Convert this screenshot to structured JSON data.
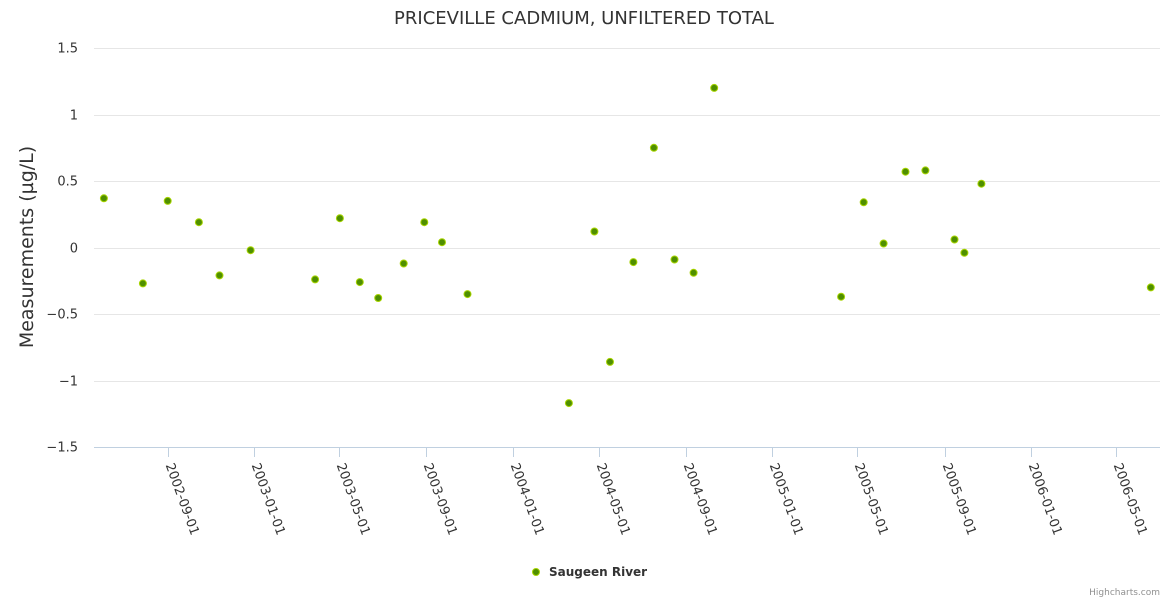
{
  "colors": {
    "point_fill": "#4f8f00",
    "point_stroke": "#a7d400",
    "grid": "#e6e6e6",
    "axis": "#c0d0e0"
  },
  "credits": "Highcharts.com",
  "chart_data": {
    "type": "scatter",
    "title": "PRICEVILLE CADMIUM, UNFILTERED TOTAL",
    "xlabel": "",
    "ylabel": "Measurements (µg/L)",
    "ylim": [
      -1.5,
      1.5
    ],
    "yticks": [
      1.5,
      1,
      0.5,
      0,
      -0.5,
      -1,
      -1.5
    ],
    "ytick_labels": [
      "1.5",
      "1",
      "0.5",
      "0",
      "−0.5",
      "−1",
      "−1.5"
    ],
    "xlim": [
      "2002-05-20",
      "2006-07-02"
    ],
    "xticks": [
      "2002-09-01",
      "2003-01-01",
      "2003-05-01",
      "2003-09-01",
      "2004-01-01",
      "2004-05-01",
      "2004-09-01",
      "2005-01-01",
      "2005-05-01",
      "2005-09-01",
      "2006-01-01",
      "2006-05-01"
    ],
    "grid": true,
    "legend": "bottom-center",
    "series": [
      {
        "name": "Saugeen River",
        "points": [
          {
            "x": "2002-06-03",
            "y": 0.37
          },
          {
            "x": "2002-07-28",
            "y": -0.27
          },
          {
            "x": "2002-09-01",
            "y": 0.35
          },
          {
            "x": "2002-10-15",
            "y": 0.19
          },
          {
            "x": "2002-11-13",
            "y": -0.21
          },
          {
            "x": "2002-12-27",
            "y": -0.02
          },
          {
            "x": "2003-03-28",
            "y": -0.24
          },
          {
            "x": "2003-05-02",
            "y": 0.22
          },
          {
            "x": "2003-05-30",
            "y": -0.26
          },
          {
            "x": "2003-06-25",
            "y": -0.38
          },
          {
            "x": "2003-07-31",
            "y": -0.12
          },
          {
            "x": "2003-08-29",
            "y": 0.19
          },
          {
            "x": "2003-09-23",
            "y": 0.04
          },
          {
            "x": "2003-10-29",
            "y": -0.35
          },
          {
            "x": "2004-03-20",
            "y": -1.17
          },
          {
            "x": "2004-04-25",
            "y": 0.12
          },
          {
            "x": "2004-05-17",
            "y": -0.86
          },
          {
            "x": "2004-06-19",
            "y": -0.11
          },
          {
            "x": "2004-07-18",
            "y": 0.75
          },
          {
            "x": "2004-08-16",
            "y": -0.09
          },
          {
            "x": "2004-09-12",
            "y": -0.19
          },
          {
            "x": "2004-10-11",
            "y": 1.2
          },
          {
            "x": "2005-04-08",
            "y": -0.37
          },
          {
            "x": "2005-05-10",
            "y": 0.34
          },
          {
            "x": "2005-06-07",
            "y": 0.03
          },
          {
            "x": "2005-07-08",
            "y": 0.57
          },
          {
            "x": "2005-08-05",
            "y": 0.58
          },
          {
            "x": "2005-09-15",
            "y": 0.06
          },
          {
            "x": "2005-09-29",
            "y": -0.04
          },
          {
            "x": "2005-10-23",
            "y": 0.48
          },
          {
            "x": "2006-06-19",
            "y": -0.3
          }
        ]
      }
    ]
  }
}
